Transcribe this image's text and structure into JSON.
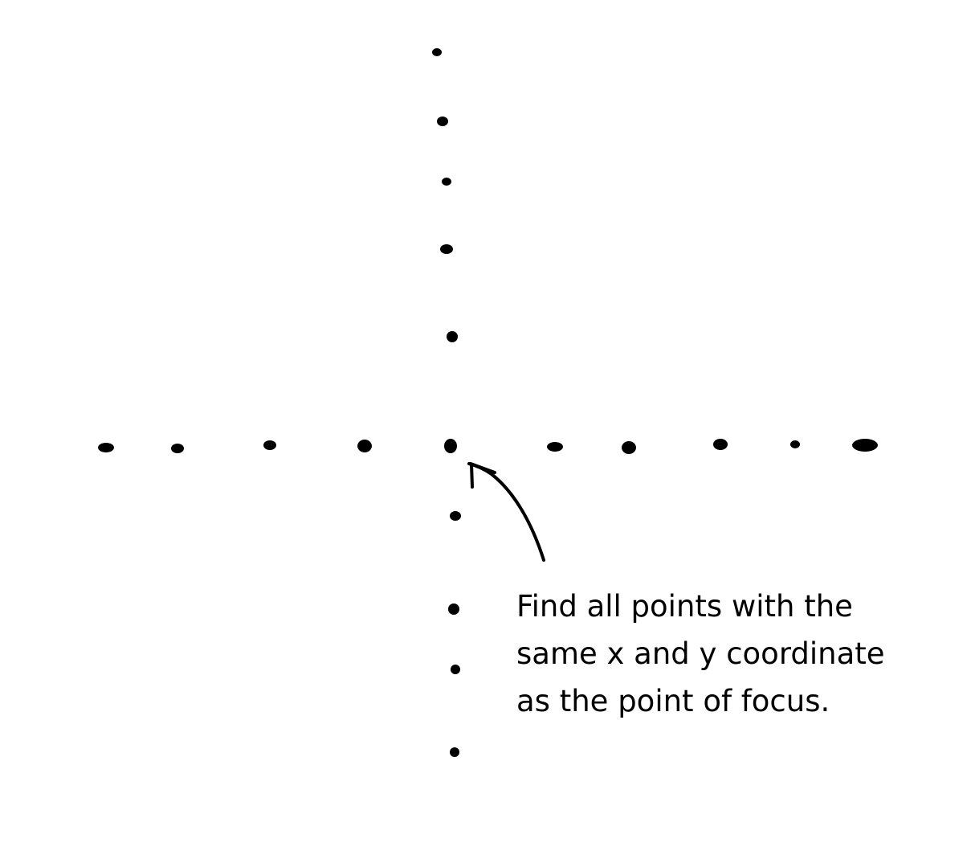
{
  "annotation": {
    "lines": [
      "Find all points with the",
      "same x and y coordinate",
      "as the point of focus."
    ]
  },
  "points": {
    "vertical_count": 9,
    "horizontal_count": 10,
    "focus_point": "center",
    "color": "#000000"
  },
  "arrow": {
    "color": "#000000",
    "points_to": "focus point"
  }
}
